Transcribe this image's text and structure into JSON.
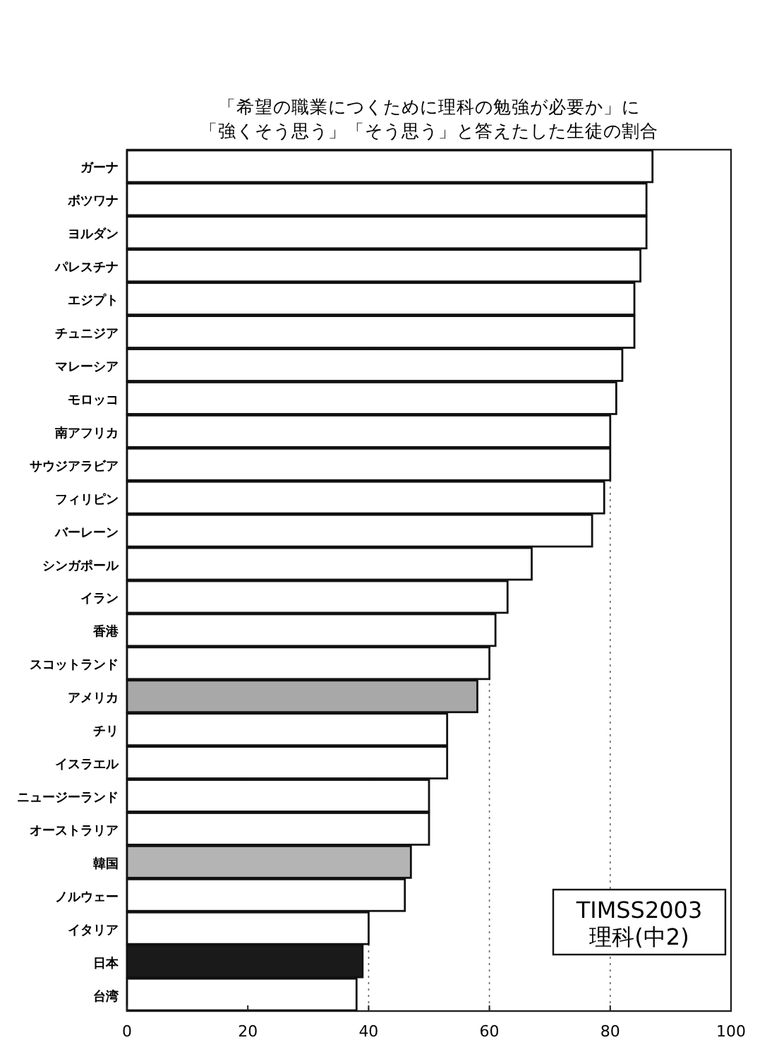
{
  "chart_data": {
    "type": "bar",
    "orientation": "horizontal",
    "title": "「希望の職業につくために理科の勉強が必要か」に",
    "subtitle": "「強くそう思う」「そう思う」と答えたした生徒の割合",
    "categories": [
      "ガーナ",
      "ボツワナ",
      "ヨルダン",
      "パレスチナ",
      "エジプト",
      "チュニジア",
      "マレーシア",
      "モロッコ",
      "南アフリカ",
      "サウジアラビア",
      "フィリピン",
      "バーレーン",
      "シンガポール",
      "イラン",
      "香港",
      "スコットランド",
      "アメリカ",
      "チリ",
      "イスラエル",
      "ニュージーランド",
      "オーストラリア",
      "韓国",
      "ノルウェー",
      "イタリア",
      "日本",
      "台湾"
    ],
    "values": [
      87,
      86,
      86,
      85,
      84,
      84,
      82,
      81,
      80,
      80,
      79,
      77,
      67,
      63,
      61,
      60,
      58,
      53,
      53,
      50,
      50,
      47,
      46,
      40,
      39,
      38
    ],
    "colors": [
      "#ffffff",
      "#ffffff",
      "#ffffff",
      "#ffffff",
      "#ffffff",
      "#ffffff",
      "#ffffff",
      "#ffffff",
      "#ffffff",
      "#ffffff",
      "#ffffff",
      "#ffffff",
      "#ffffff",
      "#ffffff",
      "#ffffff",
      "#ffffff",
      "#a8a8a8",
      "#ffffff",
      "#ffffff",
      "#ffffff",
      "#ffffff",
      "#b4b4b4",
      "#ffffff",
      "#ffffff",
      "#1a1a1a",
      "#ffffff"
    ],
    "xlim": [
      0,
      100
    ],
    "xticks": [
      0,
      20,
      40,
      60,
      80,
      100
    ],
    "grid": "x",
    "annotations": [
      "TIMSS2003\n理科(中2)"
    ]
  }
}
